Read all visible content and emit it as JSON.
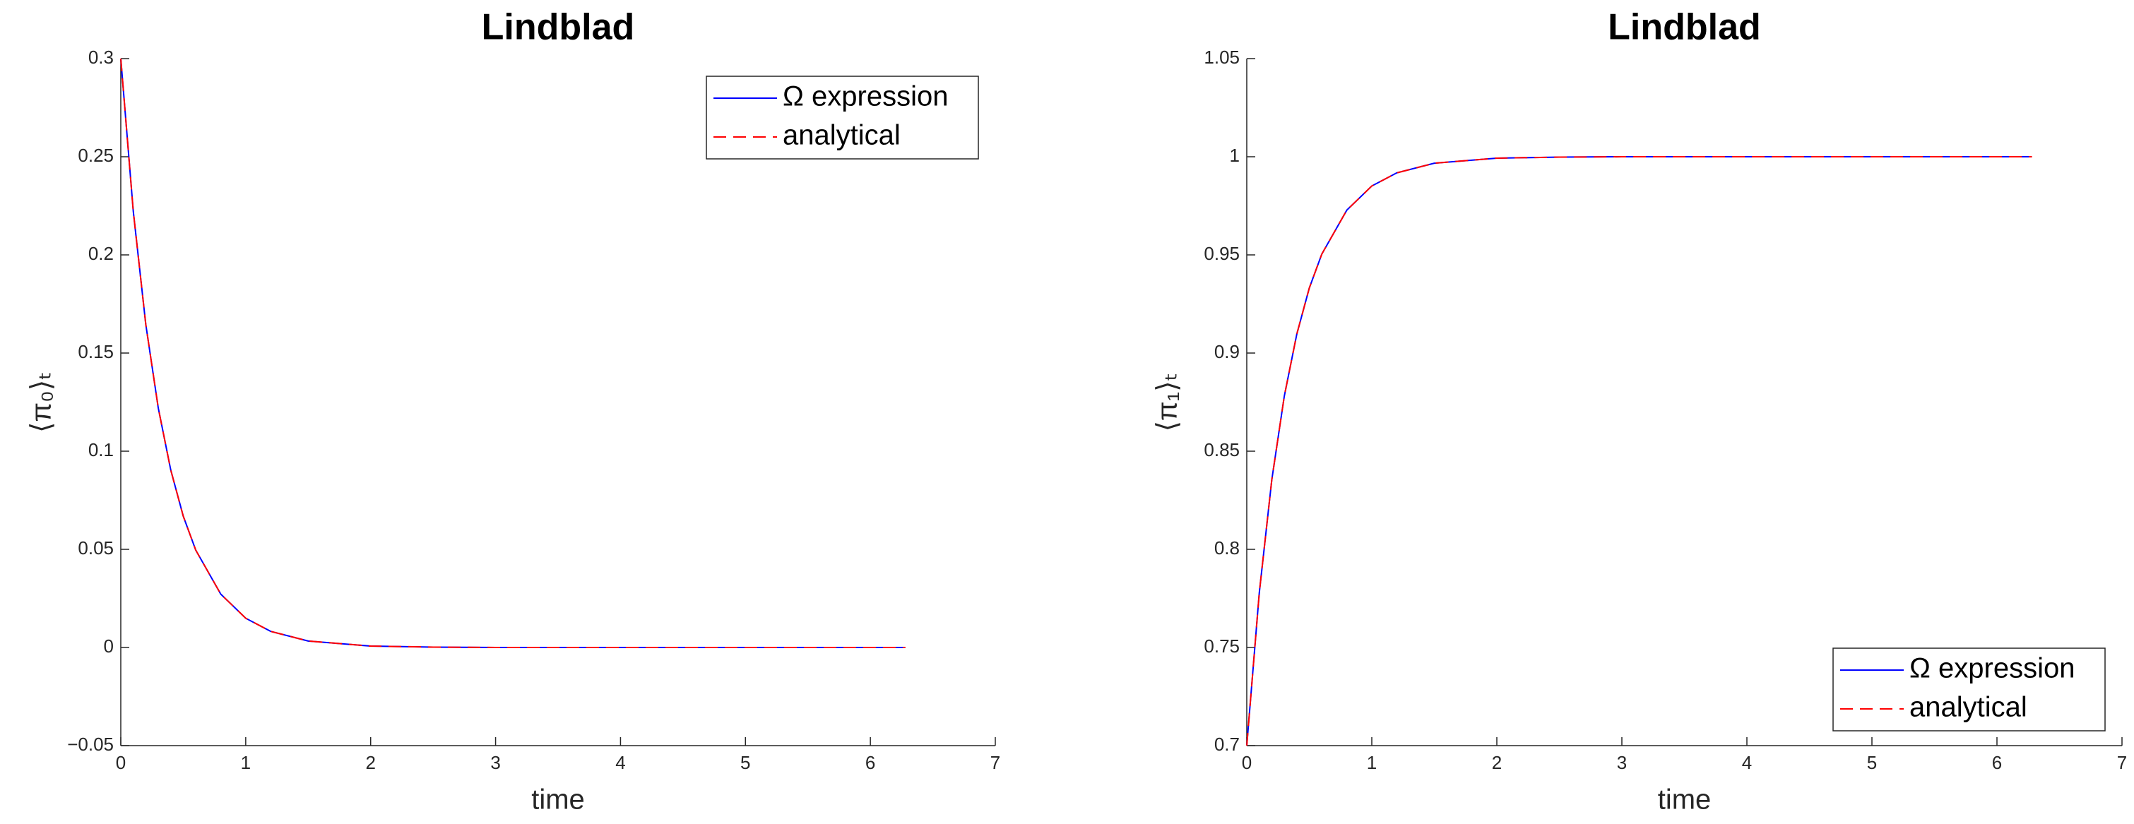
{
  "chart_data": [
    {
      "type": "line",
      "title": "Lindblad",
      "xlabel": "time",
      "ylabel": "⟨π₀⟩ₜ",
      "x": [
        0,
        0.1,
        0.2,
        0.3,
        0.4,
        0.5,
        0.6,
        0.8,
        1.0,
        1.2,
        1.5,
        2,
        2.5,
        3,
        4,
        5,
        6.28
      ],
      "series": [
        {
          "name": "Ω expression",
          "color": "#0000ff",
          "style": "solid",
          "values": [
            0.3,
            0.2222,
            0.1646,
            0.122,
            0.0904,
            0.0669,
            0.0496,
            0.0272,
            0.0149,
            0.0082,
            0.0033,
            0.0007,
            0.0002,
            0,
            0,
            0,
            0
          ]
        },
        {
          "name": "analytical",
          "color": "#ff0000",
          "style": "dashed",
          "values": [
            0.3,
            0.2222,
            0.1646,
            0.122,
            0.0904,
            0.0669,
            0.0496,
            0.0272,
            0.0149,
            0.0082,
            0.0033,
            0.0007,
            0.0002,
            0,
            0,
            0,
            0
          ]
        }
      ],
      "xlim": [
        0,
        7
      ],
      "xticks": [
        0,
        1,
        2,
        3,
        4,
        5,
        6,
        7
      ],
      "ylim": [
        -0.05,
        0.3
      ],
      "yticks": [
        {
          "value": -0.05,
          "label": "−0.05"
        },
        0,
        0.05,
        0.1,
        0.15,
        0.2,
        0.25,
        0.3
      ],
      "legend": "upper right"
    },
    {
      "type": "line",
      "title": "Lindblad",
      "xlabel": "time",
      "ylabel": "⟨π₁⟩ₜ",
      "x": [
        0,
        0.1,
        0.2,
        0.3,
        0.4,
        0.5,
        0.6,
        0.8,
        1.0,
        1.2,
        1.5,
        2,
        2.5,
        3,
        4,
        5,
        6.28
      ],
      "series": [
        {
          "name": "Ω expression",
          "color": "#0000ff",
          "style": "solid",
          "values": [
            0.7,
            0.7778,
            0.8354,
            0.878,
            0.9096,
            0.9331,
            0.9504,
            0.9728,
            0.9851,
            0.9918,
            0.9967,
            0.9993,
            0.9998,
            1,
            1,
            1,
            1
          ]
        },
        {
          "name": "analytical",
          "color": "#ff0000",
          "style": "dashed",
          "values": [
            0.7,
            0.7778,
            0.8354,
            0.878,
            0.9096,
            0.9331,
            0.9504,
            0.9728,
            0.9851,
            0.9918,
            0.9967,
            0.9993,
            0.9998,
            1,
            1,
            1,
            1
          ]
        }
      ],
      "xlim": [
        0,
        7
      ],
      "xticks": [
        0,
        1,
        2,
        3,
        4,
        5,
        6,
        7
      ],
      "ylim": [
        0.7,
        1.05
      ],
      "yticks": [
        0.7,
        0.75,
        0.8,
        0.85,
        0.9,
        0.95,
        1,
        1.05
      ],
      "legend": "lower right"
    }
  ]
}
